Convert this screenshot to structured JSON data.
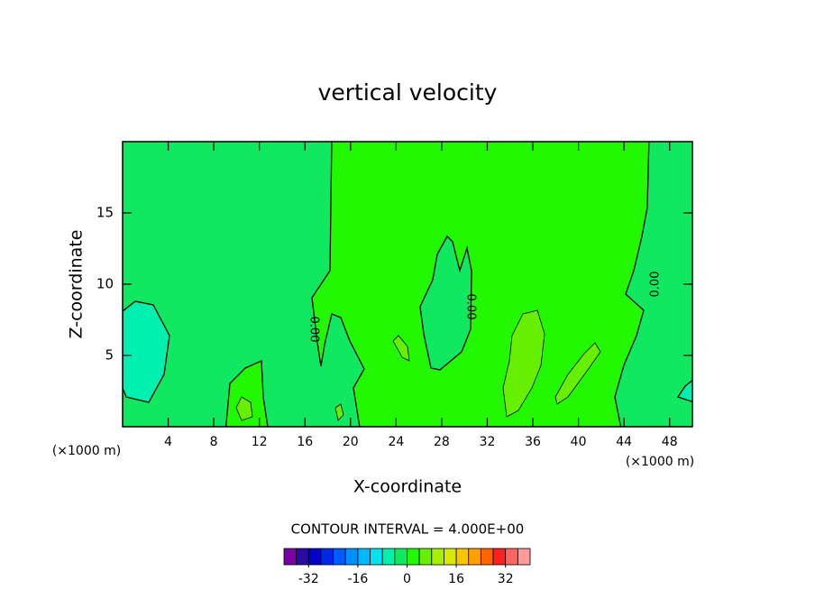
{
  "chart_data": {
    "type": "contour",
    "title": "vertical velocity",
    "xlabel": "X-coordinate",
    "ylabel": "Z-coordinate",
    "x_unit_label": "(×1000 m)",
    "annotation": "CONTOUR INTERVAL = 4.000E+00",
    "xlim": [
      0,
      50
    ],
    "ylim": [
      0,
      20
    ],
    "xticks": [
      4,
      8,
      12,
      16,
      20,
      24,
      28,
      32,
      36,
      40,
      44,
      48
    ],
    "yticks": [
      5,
      10,
      15
    ],
    "levels": [
      -40,
      -36,
      -32,
      -28,
      -24,
      -20,
      -16,
      -12,
      -8,
      -4,
      0,
      4,
      8,
      12,
      16,
      20,
      24,
      28,
      32,
      36,
      40
    ],
    "colors": [
      "#7a00a8",
      "#2a0aa0",
      "#0000c8",
      "#0028e6",
      "#005aff",
      "#0090ff",
      "#00b8ff",
      "#00e4f0",
      "#00f0b0",
      "#10e860",
      "#22f800",
      "#66f000",
      "#a8f000",
      "#d8e800",
      "#f6c800",
      "#ffa000",
      "#ff6400",
      "#ff2020",
      "#ff6464",
      "#ff9a9a"
    ],
    "colorbar_ticks": [
      -32,
      -16,
      0,
      16,
      32
    ],
    "contour_labels": [
      "0.00",
      "0.00",
      "0.00"
    ]
  }
}
